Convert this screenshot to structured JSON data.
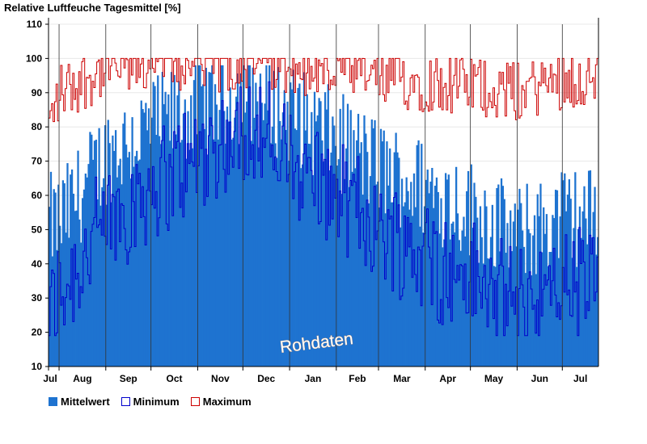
{
  "chart_data": {
    "type": "area",
    "title": "Relative Luftfeuche Tagesmittel [%]",
    "watermark": "Rohdaten",
    "ylim": [
      10,
      110
    ],
    "yticks": [
      10,
      20,
      30,
      40,
      50,
      60,
      70,
      80,
      90,
      100,
      110
    ],
    "months": [
      "Jul",
      "Aug",
      "Sep",
      "Oct",
      "Nov",
      "Dec",
      "Jan",
      "Feb",
      "Mar",
      "Apr",
      "May",
      "Jun",
      "Jul"
    ],
    "month_start_days": [
      0,
      7,
      38,
      68,
      99,
      129,
      160,
      191,
      219,
      250,
      280,
      311,
      341
    ],
    "total_days": 365,
    "series": [
      {
        "name": "Mittelwert",
        "color": "#1e73d0",
        "style": "fill"
      },
      {
        "name": "Minimum",
        "color": "#0000cc",
        "style": "line"
      },
      {
        "name": "Maximum",
        "color": "#cc0000",
        "style": "line"
      }
    ],
    "monthly_profile": {
      "mean": [
        52,
        52,
        72,
        80,
        86,
        90,
        84,
        76,
        68,
        62,
        56,
        48,
        54
      ],
      "minimum": [
        26,
        32,
        52,
        64,
        72,
        82,
        72,
        62,
        52,
        42,
        36,
        28,
        34
      ],
      "maximum": [
        82,
        92,
        99,
        100,
        100,
        100,
        99,
        98,
        96,
        95,
        94,
        92,
        96
      ]
    }
  },
  "legend": {
    "mean_label": "Mittelwert",
    "min_label": "Minimum",
    "max_label": "Maximum"
  }
}
